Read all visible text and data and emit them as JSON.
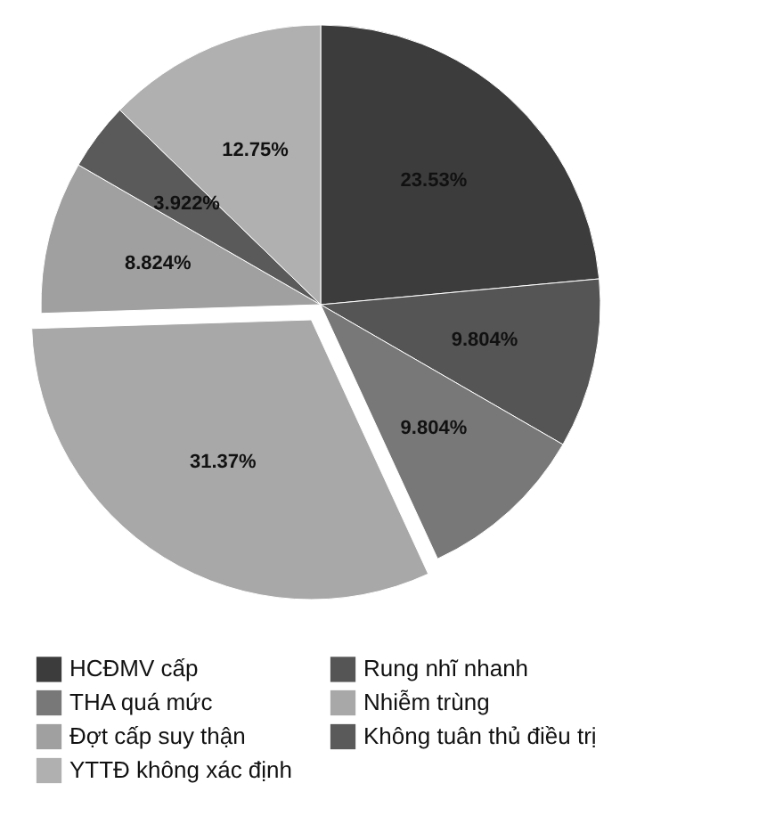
{
  "chart_data": {
    "type": "pie",
    "categories": [
      "HCĐMV cấp",
      "Rung nhĩ nhanh",
      "THA quá mức",
      "Nhiễm trùng",
      "Đợt cấp suy thận",
      "Không tuân thủ điều trị",
      "YTTĐ không xác định"
    ],
    "values": [
      23.53,
      9.804,
      9.804,
      31.37,
      8.824,
      3.922,
      12.75
    ],
    "colors": [
      "#3c3c3c",
      "#555555",
      "#787878",
      "#a8a8a8",
      "#a0a0a0",
      "#5a5a5a",
      "#b0b0b0"
    ],
    "value_labels": [
      "23.53%",
      "9.804%",
      "9.804%",
      "31.37%",
      "8.824%",
      "3.922%",
      "12.75%"
    ],
    "legend": "bottom"
  }
}
